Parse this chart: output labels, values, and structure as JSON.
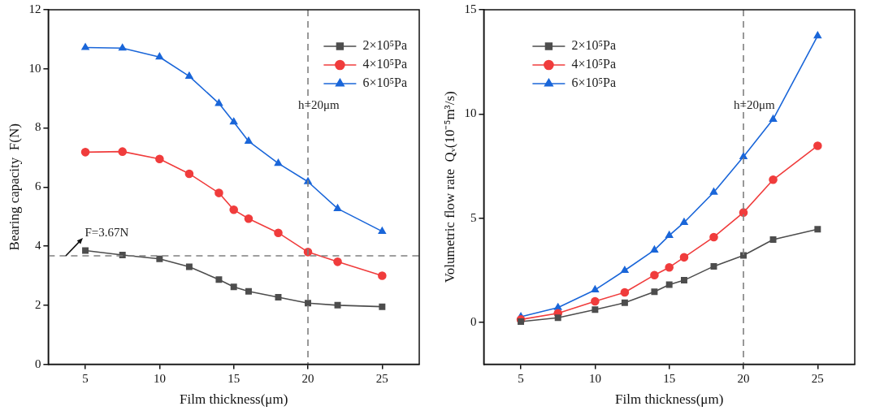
{
  "chart_data": [
    {
      "type": "line",
      "xlabel": "Film thickness(μm)",
      "ylabel": "Bearing capacity  F(N)",
      "x": [
        5,
        7.5,
        10,
        12,
        14,
        15,
        16,
        18,
        20,
        22,
        25
      ],
      "series": [
        {
          "name": "2×10⁵Pa",
          "color": "#4d4d4d",
          "marker": "square",
          "values": [
            3.85,
            3.7,
            3.57,
            3.3,
            2.87,
            2.62,
            2.47,
            2.27,
            2.07,
            2.0,
            1.95
          ]
        },
        {
          "name": "4×10⁵Pa",
          "color": "#f03c3c",
          "marker": "circle",
          "values": [
            7.18,
            7.2,
            6.95,
            6.45,
            5.8,
            5.23,
            4.93,
            4.45,
            3.8,
            3.47,
            3.0
          ]
        },
        {
          "name": "6×10⁵Pa",
          "color": "#1a66d9",
          "marker": "triangle",
          "values": [
            10.72,
            10.7,
            10.4,
            9.75,
            8.83,
            8.2,
            7.55,
            6.8,
            6.18,
            5.27,
            4.5
          ]
        }
      ],
      "xlim": [
        2.5,
        27.5
      ],
      "xticks": [
        5,
        10,
        15,
        20,
        25
      ],
      "ylim": [
        0,
        12
      ],
      "yticks": [
        0,
        2,
        4,
        6,
        8,
        10,
        12
      ],
      "ref_lines": [
        {
          "axis": "y",
          "value": 3.67,
          "label": "F=3.67N",
          "color": "#7f7f7f",
          "line_style": "dashed"
        },
        {
          "axis": "x",
          "value": 20,
          "label": "h=20μm",
          "color": "#7f7f7f",
          "line_style": "dashed"
        }
      ],
      "legend": "top right",
      "grid": false,
      "line_style": "solid"
    },
    {
      "type": "line",
      "xlabel": "Film thickness(μm)",
      "ylabel": "Volumetric flow rate  Qᵥ(10⁻⁵m³/s)",
      "x": [
        5,
        7.5,
        10,
        12,
        14,
        15,
        16,
        18,
        20,
        22,
        25
      ],
      "series": [
        {
          "name": "2×10⁵Pa",
          "color": "#4d4d4d",
          "marker": "square",
          "values": [
            0.05,
            0.23,
            0.62,
            0.95,
            1.48,
            1.82,
            2.03,
            2.7,
            3.22,
            3.98,
            4.48
          ]
        },
        {
          "name": "4×10⁵Pa",
          "color": "#f03c3c",
          "marker": "circle",
          "values": [
            0.15,
            0.45,
            1.02,
            1.45,
            2.28,
            2.65,
            3.13,
            4.1,
            5.28,
            6.85,
            8.48
          ]
        },
        {
          "name": "6×10⁵Pa",
          "color": "#1a66d9",
          "marker": "triangle",
          "values": [
            0.28,
            0.72,
            1.57,
            2.5,
            3.48,
            4.18,
            4.8,
            6.25,
            7.95,
            9.75,
            13.75
          ]
        }
      ],
      "xlim": [
        2.5,
        27.5
      ],
      "xticks": [
        5,
        10,
        15,
        20,
        25
      ],
      "ylim": [
        -2,
        15
      ],
      "yticks": [
        0,
        5,
        10,
        15
      ],
      "ref_lines": [
        {
          "axis": "x",
          "value": 20,
          "label": "h=20μm",
          "color": "#7f7f7f",
          "line_style": "dashed"
        }
      ],
      "legend": "top left",
      "grid": false,
      "line_style": "solid"
    }
  ]
}
